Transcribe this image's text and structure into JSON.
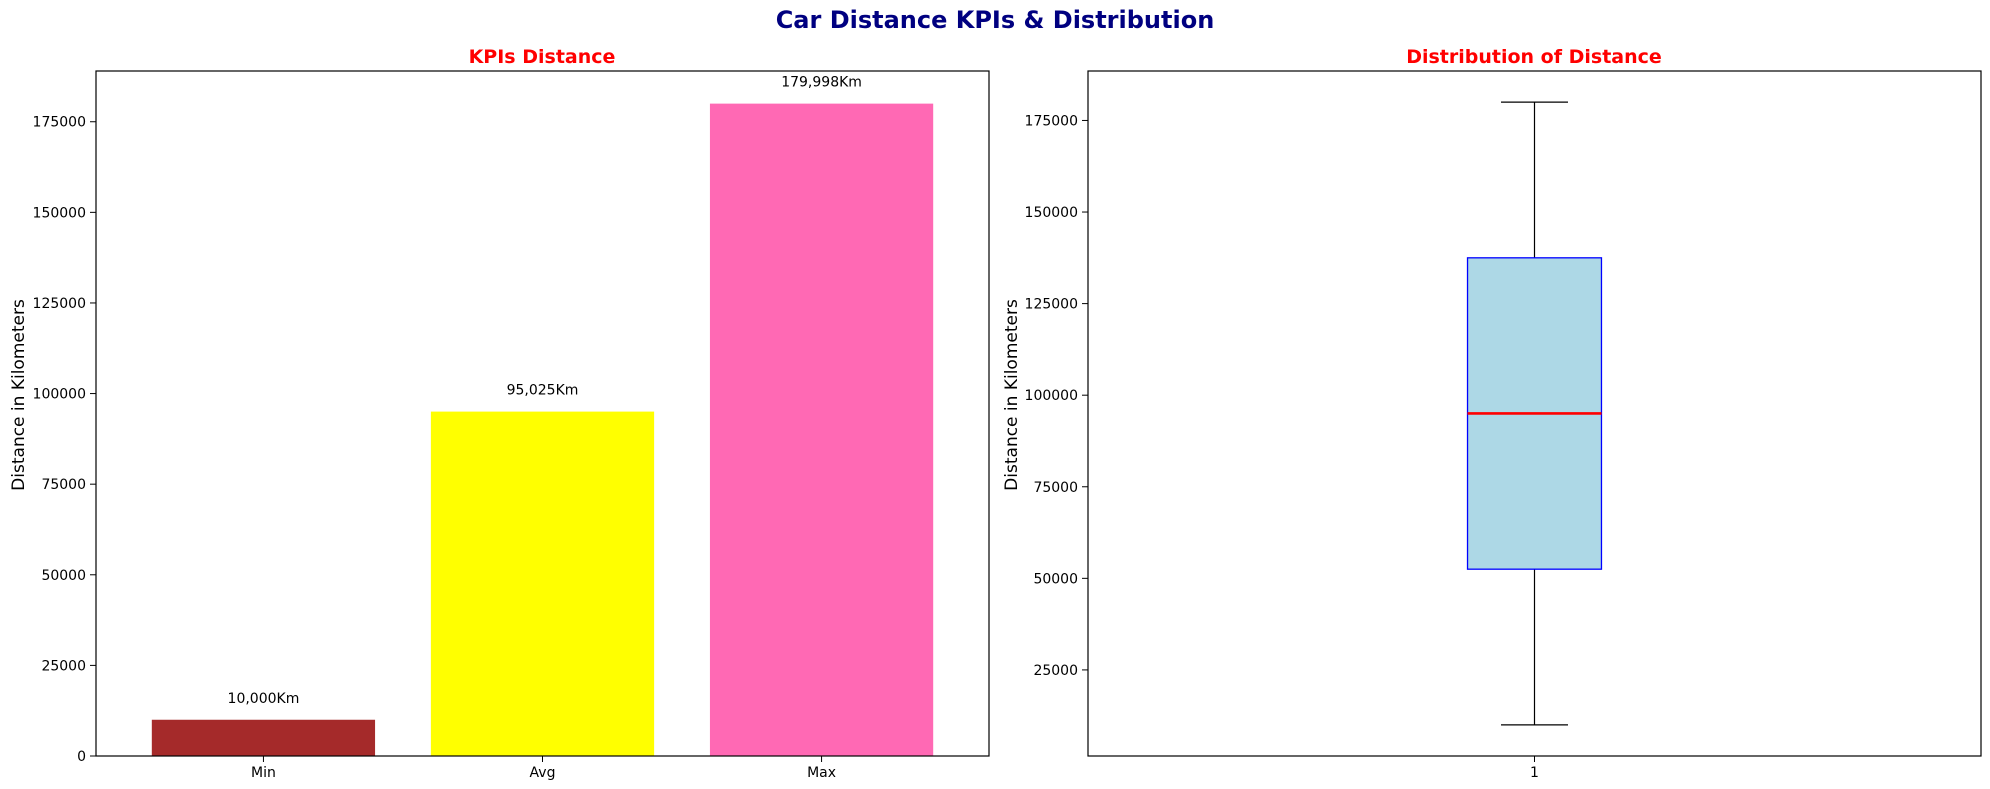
{
  "figure": {
    "title": "Car Distance KPIs & Distribution",
    "title_color": "#000080"
  },
  "chart_data": [
    {
      "type": "bar",
      "title": "KPIs Distance",
      "title_color": "#ff0000",
      "xlabel": "",
      "ylabel": "Distance in Kilometers",
      "categories": [
        "Min",
        "Avg",
        "Max"
      ],
      "values": [
        10000,
        95025,
        179998
      ],
      "value_labels": [
        "10,000Km",
        "95,025Km",
        "179,998Km"
      ],
      "colors": [
        "#a52a2a",
        "#ffff00",
        "#ff69b4"
      ],
      "ylim": [
        0,
        189000
      ],
      "yticks": [
        0,
        25000,
        50000,
        75000,
        100000,
        125000,
        150000,
        175000
      ],
      "ytick_labels": [
        "0",
        "25000",
        "50000",
        "75000",
        "100000",
        "125000",
        "150000",
        "175000"
      ],
      "grid": false
    },
    {
      "type": "box",
      "title": "Distribution of Distance",
      "title_color": "#ff0000",
      "xlabel": "",
      "ylabel": "Distance in Kilometers",
      "categories": [
        "1"
      ],
      "box": {
        "whisker_low": 10000,
        "q1": 52500,
        "median": 95025,
        "q3": 137500,
        "whisker_high": 179998
      },
      "box_fill": "#add8e6",
      "box_edge": "#0000ff",
      "median_color": "#ff0000",
      "ylim": [
        1500,
        188500
      ],
      "yticks": [
        25000,
        50000,
        75000,
        100000,
        125000,
        150000,
        175000
      ],
      "ytick_labels": [
        "25000",
        "50000",
        "75000",
        "100000",
        "125000",
        "150000",
        "175000"
      ],
      "grid": false
    }
  ]
}
